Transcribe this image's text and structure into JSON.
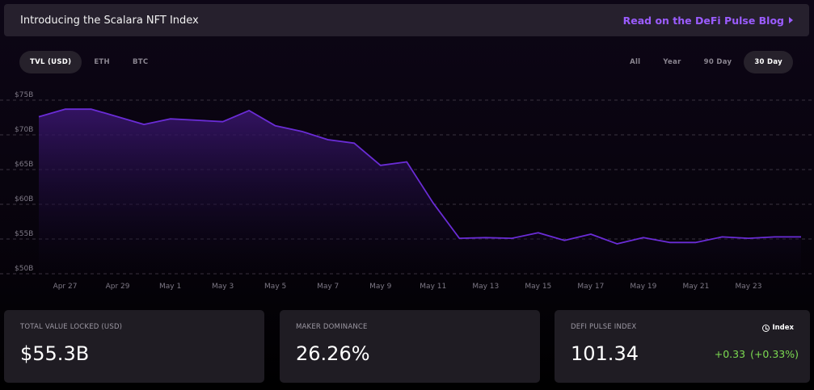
{
  "banner": {
    "title": "Introducing the Scalara NFT Index",
    "link_label": "Read on the DeFi Pulse Blog"
  },
  "currency_tabs": [
    {
      "label": "TVL (USD)",
      "active": true
    },
    {
      "label": "ETH",
      "active": false
    },
    {
      "label": "BTC",
      "active": false
    }
  ],
  "range_tabs": [
    {
      "label": "All",
      "active": false
    },
    {
      "label": "Year",
      "active": false
    },
    {
      "label": "90 Day",
      "active": false
    },
    {
      "label": "30 Day",
      "active": true
    }
  ],
  "colors": {
    "accent": "#9b5cff",
    "line": "#6a2cd6",
    "positive": "#7ddc52"
  },
  "chart_data": {
    "type": "area",
    "x": [
      "Apr 26",
      "Apr 27",
      "Apr 28",
      "Apr 29",
      "Apr 30",
      "May 1",
      "May 2",
      "May 3",
      "May 4",
      "May 5",
      "May 6",
      "May 7",
      "May 8",
      "May 9",
      "May 10",
      "May 11",
      "May 12",
      "May 13",
      "May 14",
      "May 15",
      "May 16",
      "May 17",
      "May 18",
      "May 19",
      "May 20",
      "May 21",
      "May 22",
      "May 23",
      "May 24",
      "May 25"
    ],
    "values": [
      72.6,
      73.7,
      73.7,
      72.6,
      71.5,
      72.3,
      72.1,
      71.9,
      73.5,
      71.3,
      70.5,
      69.3,
      68.8,
      65.6,
      66.1,
      60.2,
      55.1,
      55.2,
      55.1,
      55.9,
      54.8,
      55.7,
      54.3,
      55.2,
      54.5,
      54.5,
      55.3,
      55.1,
      55.3,
      55.3
    ],
    "y_ticks": [
      "$75B",
      "$70B",
      "$65B",
      "$60B",
      "$55B",
      "$50B"
    ],
    "x_ticks": [
      "Apr 27",
      "Apr 29",
      "May 1",
      "May 3",
      "May 5",
      "May 7",
      "May 9",
      "May 11",
      "May 13",
      "May 15",
      "May 17",
      "May 19",
      "May 21",
      "May 23"
    ],
    "ylim": [
      50,
      75
    ],
    "grid": true
  },
  "stats": [
    {
      "label": "TOTAL VALUE LOCKED (USD)",
      "value": "$55.3B"
    },
    {
      "label": "MAKER DOMINANCE",
      "value": "26.26%"
    },
    {
      "label": "DEFI PULSE INDEX",
      "value": "101.34",
      "index_label": "Index",
      "change": "+0.33",
      "change_pct": "(+0.33%)"
    }
  ]
}
